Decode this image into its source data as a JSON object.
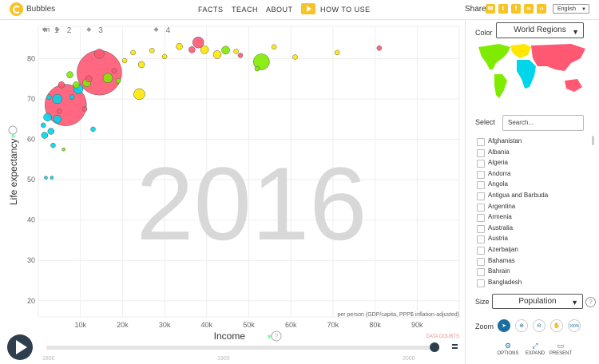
{
  "app": {
    "name": "Bubbles"
  },
  "nav": {
    "facts": "FACTS",
    "teach": "TEACH",
    "about": "ABOUT",
    "how_to_use": "HOW TO USE"
  },
  "share": {
    "label": "Share",
    "icons": [
      "mail-icon",
      "twitter-icon",
      "facebook-icon",
      "link-icon",
      "code-icon"
    ]
  },
  "language": {
    "selected": "English"
  },
  "chart_data": {
    "type": "scatter",
    "year": "2016",
    "xlabel": "Income",
    "xsub": "per person (GDP/capita, PPP$ inflation-adjusted)",
    "ylabel": "Life expectancy",
    "x_ticks": [
      "10k",
      "20k",
      "30k",
      "40k",
      "50k",
      "60k",
      "70k",
      "80k",
      "90k"
    ],
    "y_ticks": [
      "20",
      "30",
      "40",
      "50",
      "60",
      "70",
      "80"
    ],
    "xlim": [
      0,
      100000
    ],
    "ylim": [
      16,
      88
    ],
    "income_markers": [
      "1",
      "2",
      "3",
      "4"
    ],
    "yr_label": "YR",
    "data_doubts": "DATA DOUBTS",
    "colors": {
      "asia": "#ff5872",
      "americas": "#7feb00",
      "europe": "#ffe700",
      "africa": "#00d5e9"
    },
    "points": [
      {
        "x": 14500,
        "y": 76.5,
        "r": 28,
        "c": "asia"
      },
      {
        "x": 6500,
        "y": 68.5,
        "r": 26,
        "c": "asia"
      },
      {
        "x": 53000,
        "y": 79.2,
        "r": 10,
        "c": "americas"
      },
      {
        "x": 38000,
        "y": 84.0,
        "r": 7,
        "c": "asia"
      },
      {
        "x": 9500,
        "y": 72.5,
        "r": 6,
        "c": "africa"
      },
      {
        "x": 4500,
        "y": 70.0,
        "r": 6,
        "c": "africa"
      },
      {
        "x": 2200,
        "y": 65.5,
        "r": 5,
        "c": "africa"
      },
      {
        "x": 24000,
        "y": 71.2,
        "r": 7,
        "c": "europe"
      },
      {
        "x": 16500,
        "y": 75.2,
        "r": 6,
        "c": "americas"
      },
      {
        "x": 11500,
        "y": 74.0,
        "r": 5,
        "c": "americas"
      },
      {
        "x": 14500,
        "y": 81.2,
        "r": 6,
        "c": "asia"
      },
      {
        "x": 39500,
        "y": 82.2,
        "r": 5,
        "c": "europe"
      },
      {
        "x": 33500,
        "y": 83.0,
        "r": 4,
        "c": "europe"
      },
      {
        "x": 42500,
        "y": 81.0,
        "r": 5,
        "c": "europe"
      },
      {
        "x": 44500,
        "y": 82.1,
        "r": 5,
        "c": "americas"
      },
      {
        "x": 36500,
        "y": 82.2,
        "r": 4,
        "c": "asia"
      },
      {
        "x": 24500,
        "y": 78.5,
        "r": 4,
        "c": "europe"
      },
      {
        "x": 4500,
        "y": 65.0,
        "r": 5,
        "c": "africa"
      },
      {
        "x": 1500,
        "y": 61.0,
        "r": 4,
        "c": "africa"
      },
      {
        "x": 3000,
        "y": 62.0,
        "r": 4,
        "c": "africa"
      },
      {
        "x": 1200,
        "y": 63.5,
        "r": 3,
        "c": "africa"
      },
      {
        "x": 5500,
        "y": 73.5,
        "r": 4,
        "c": "asia"
      },
      {
        "x": 7500,
        "y": 76.0,
        "r": 4,
        "c": "americas"
      },
      {
        "x": 12000,
        "y": 75.0,
        "r": 4,
        "c": "asia"
      },
      {
        "x": 9000,
        "y": 73.5,
        "r": 4,
        "c": "americas"
      },
      {
        "x": 20500,
        "y": 79.5,
        "r": 3,
        "c": "europe"
      },
      {
        "x": 30000,
        "y": 80.5,
        "r": 3,
        "c": "europe"
      },
      {
        "x": 48000,
        "y": 80.8,
        "r": 3,
        "c": "asia"
      },
      {
        "x": 61000,
        "y": 80.4,
        "r": 3,
        "c": "europe"
      },
      {
        "x": 71000,
        "y": 81.5,
        "r": 3,
        "c": "europe"
      },
      {
        "x": 81000,
        "y": 82.6,
        "r": 3,
        "c": "asia"
      },
      {
        "x": 56000,
        "y": 82.9,
        "r": 3,
        "c": "europe"
      },
      {
        "x": 18000,
        "y": 77.0,
        "r": 3,
        "c": "asia"
      },
      {
        "x": 11000,
        "y": 67.5,
        "r": 3,
        "c": "asia"
      },
      {
        "x": 3500,
        "y": 58.5,
        "r": 3,
        "c": "africa"
      },
      {
        "x": 6000,
        "y": 57.5,
        "r": 2,
        "c": "americas"
      },
      {
        "x": 1800,
        "y": 50.5,
        "r": 2,
        "c": "africa"
      },
      {
        "x": 3200,
        "y": 50.5,
        "r": 2,
        "c": "africa"
      },
      {
        "x": 22500,
        "y": 81.5,
        "r": 3,
        "c": "europe"
      },
      {
        "x": 27000,
        "y": 82.0,
        "r": 3,
        "c": "europe"
      },
      {
        "x": 8000,
        "y": 70.5,
        "r": 3,
        "c": "africa"
      },
      {
        "x": 13000,
        "y": 62.5,
        "r": 3,
        "c": "africa"
      },
      {
        "x": 19000,
        "y": 74.5,
        "r": 3,
        "c": "americas"
      },
      {
        "x": 47000,
        "y": 81.8,
        "r": 3,
        "c": "europe"
      },
      {
        "x": 52000,
        "y": 77.5,
        "r": 3,
        "c": "americas"
      },
      {
        "x": 2500,
        "y": 70.5,
        "r": 3,
        "c": "africa"
      },
      {
        "x": 5000,
        "y": 67.0,
        "r": 3,
        "c": "asia"
      }
    ]
  },
  "panel": {
    "color_label": "Color",
    "color_select": "World Regions",
    "select_label": "Select",
    "search_placeholder": "Search...",
    "countries": [
      "Afghanistan",
      "Albania",
      "Algeria",
      "Andorra",
      "Angola",
      "Antigua and Barbuda",
      "Argentina",
      "Armenia",
      "Australia",
      "Austria",
      "Azerbaijan",
      "Bahamas",
      "Bahrain",
      "Bangladesh"
    ],
    "size_label": "Size",
    "size_select": "Population",
    "zoom_label": "Zoom",
    "zoom_100": "100%",
    "options_label": "OPTIONS",
    "expand_label": "EXPAND",
    "present_label": "PRESENT"
  },
  "timeline": {
    "start": "1800",
    "mid": "1900",
    "end": "2000",
    "progress": 0.992
  }
}
